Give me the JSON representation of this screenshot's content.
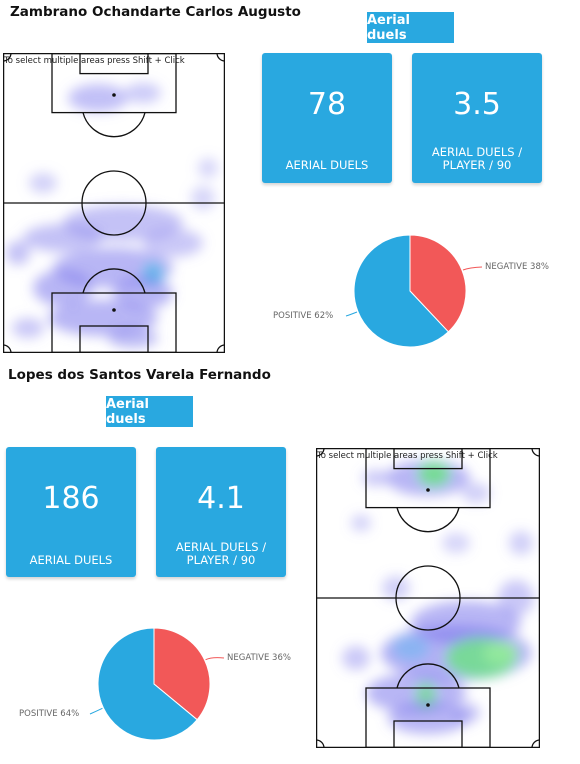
{
  "colors": {
    "accent": "#29a8e0",
    "negative": "#f25858",
    "positive": "#29a8e0"
  },
  "pitch_caption": "To select multiple areas press Shift + Click",
  "players": [
    {
      "name": "Zambrano Ochandarte Carlos Augusto",
      "section_title": "Aerial duels",
      "stats": [
        {
          "value": "78",
          "label": "AERIAL DUELS"
        },
        {
          "value": "3.5",
          "label_line1": "AERIAL DUELS /",
          "label_line2": "PLAYER / 90"
        }
      ],
      "chart_data": {
        "type": "pie",
        "slices": [
          {
            "name": "NEGATIVE",
            "percent": 38,
            "label": "NEGATIVE 38%"
          },
          {
            "name": "POSITIVE",
            "percent": 62,
            "label": "POSITIVE 62%"
          }
        ]
      }
    },
    {
      "name": "Lopes dos Santos Varela Fernando",
      "section_title": "Aerial duels",
      "stats": [
        {
          "value": "186",
          "label": "AERIAL DUELS"
        },
        {
          "value": "4.1",
          "label_line1": "AERIAL DUELS /",
          "label_line2": "PLAYER / 90"
        }
      ],
      "chart_data": {
        "type": "pie",
        "slices": [
          {
            "name": "NEGATIVE",
            "percent": 36,
            "label": "NEGATIVE 36%"
          },
          {
            "name": "POSITIVE",
            "percent": 64,
            "label": "POSITIVE 64%"
          }
        ]
      }
    }
  ]
}
